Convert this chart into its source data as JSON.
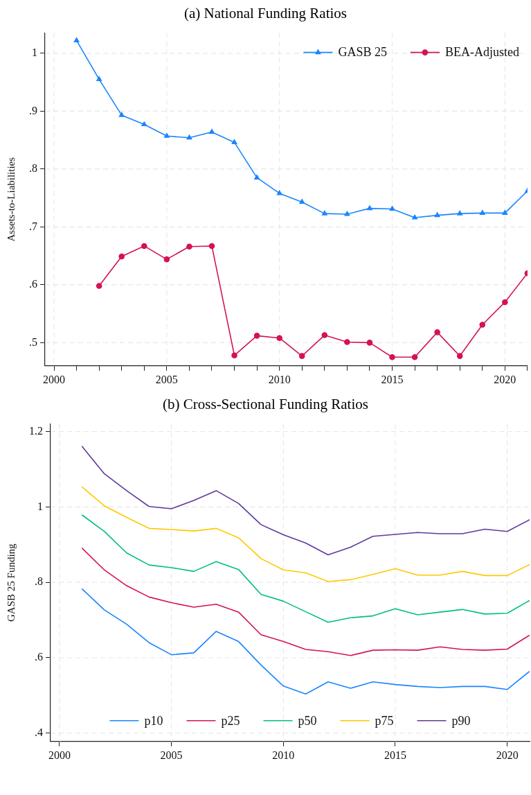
{
  "chart_data": [
    {
      "type": "line",
      "title": "(a) National Funding Ratios",
      "ylabel": "Assets-to-Liabilities",
      "x": [
        2001,
        2002,
        2003,
        2004,
        2005,
        2006,
        2007,
        2008,
        2009,
        2010,
        2011,
        2012,
        2013,
        2014,
        2015,
        2016,
        2017,
        2018,
        2019,
        2020,
        2021
      ],
      "series": [
        {
          "name": "GASB 25",
          "color": "#1a85ff",
          "marker": "triangle",
          "values": [
            1.022,
            0.955,
            0.893,
            0.877,
            0.857,
            0.854,
            0.864,
            0.846,
            0.785,
            0.758,
            0.743,
            0.723,
            0.722,
            0.732,
            0.731,
            0.716,
            0.72,
            0.723,
            0.724,
            0.724,
            0.762
          ]
        },
        {
          "name": "BEA-Adjusted",
          "color": "#d41159",
          "marker": "circle",
          "values": [
            null,
            0.598,
            0.649,
            0.667,
            0.644,
            0.666,
            0.667,
            0.478,
            0.512,
            0.508,
            0.477,
            0.513,
            0.501,
            0.5,
            0.475,
            0.475,
            0.518,
            0.477,
            0.531,
            0.57,
            0.62
          ]
        }
      ],
      "xlim": [
        1999.6,
        2021
      ],
      "xticks": [
        2000,
        {
          "value": 2001,
          "label": null
        },
        {
          "value": 2002,
          "label": null
        },
        {
          "value": 2003,
          "label": null
        },
        {
          "value": 2004,
          "label": null
        },
        2005,
        {
          "value": 2006,
          "label": null
        },
        {
          "value": 2007,
          "label": null
        },
        {
          "value": 2008,
          "label": null
        },
        {
          "value": 2009,
          "label": null
        },
        2010,
        {
          "value": 2011,
          "label": null
        },
        {
          "value": 2012,
          "label": null
        },
        {
          "value": 2013,
          "label": null
        },
        {
          "value": 2014,
          "label": null
        },
        2015,
        {
          "value": 2016,
          "label": null
        },
        {
          "value": 2017,
          "label": null
        },
        {
          "value": 2018,
          "label": null
        },
        {
          "value": 2019,
          "label": null
        },
        2020,
        {
          "value": 2021,
          "label": null
        }
      ],
      "ylim": [
        0.46,
        1.035
      ],
      "yticks": [
        {
          "value": 0.5,
          "label": ".5"
        },
        {
          "value": 0.6,
          "label": ".6"
        },
        {
          "value": 0.7,
          "label": ".7"
        },
        {
          "value": 0.8,
          "label": ".8"
        },
        {
          "value": 0.9,
          "label": ".9"
        },
        {
          "value": 1,
          "label": "1"
        }
      ],
      "grid": true,
      "legend": "top right"
    },
    {
      "type": "line",
      "title": "(b) Cross-Sectional Funding Ratios",
      "ylabel": "GASB 25 Funding",
      "x": [
        2001,
        2002,
        2003,
        2004,
        2005,
        2006,
        2007,
        2008,
        2009,
        2010,
        2011,
        2012,
        2013,
        2014,
        2015,
        2016,
        2017,
        2018,
        2019,
        2020,
        2021
      ],
      "series": [
        {
          "name": "p10",
          "color": "#1a85ff",
          "values": [
            0.783,
            0.727,
            0.689,
            0.64,
            0.608,
            0.613,
            0.67,
            0.643,
            0.581,
            0.525,
            0.504,
            0.536,
            0.519,
            0.536,
            0.529,
            0.524,
            0.521,
            0.524,
            0.524,
            0.516,
            0.564
          ]
        },
        {
          "name": "p25",
          "color": "#d41159",
          "values": [
            0.891,
            0.833,
            0.791,
            0.761,
            0.746,
            0.734,
            0.742,
            0.721,
            0.661,
            0.643,
            0.622,
            0.616,
            0.606,
            0.62,
            0.621,
            0.62,
            0.629,
            0.622,
            0.62,
            0.623,
            0.66
          ]
        },
        {
          "name": "p50",
          "color": "#00bf7f",
          "values": [
            0.979,
            0.935,
            0.878,
            0.846,
            0.839,
            0.829,
            0.855,
            0.834,
            0.768,
            0.75,
            0.722,
            0.694,
            0.706,
            0.711,
            0.73,
            0.714,
            0.721,
            0.728,
            0.716,
            0.718,
            0.752
          ]
        },
        {
          "name": "p75",
          "color": "#ffc800",
          "values": [
            1.053,
            1.003,
            0.972,
            0.943,
            0.94,
            0.936,
            0.943,
            0.918,
            0.863,
            0.833,
            0.825,
            0.802,
            0.807,
            0.821,
            0.836,
            0.819,
            0.819,
            0.829,
            0.818,
            0.818,
            0.847
          ]
        },
        {
          "name": "p90",
          "color": "#5d3a9b",
          "values": [
            1.161,
            1.088,
            1.043,
            1.001,
            0.995,
            1.017,
            1.043,
            1.009,
            0.953,
            0.926,
            0.904,
            0.873,
            0.893,
            0.922,
            0.927,
            0.932,
            0.929,
            0.929,
            0.941,
            0.935,
            0.966
          ]
        }
      ],
      "xlim": [
        1999.6,
        2021
      ],
      "xticks": [
        2000,
        2005,
        2010,
        2015,
        2020
      ],
      "ylim": [
        0.378,
        1.22
      ],
      "yticks": [
        {
          "value": 0.4,
          "label": ".4"
        },
        {
          "value": 0.6,
          "label": ".6"
        },
        {
          "value": 0.8,
          "label": ".8"
        },
        {
          "value": 1,
          "label": "1"
        },
        {
          "value": 1.2,
          "label": "1.2"
        }
      ],
      "grid": true,
      "legend": "bottom",
      "marker": "none"
    }
  ]
}
